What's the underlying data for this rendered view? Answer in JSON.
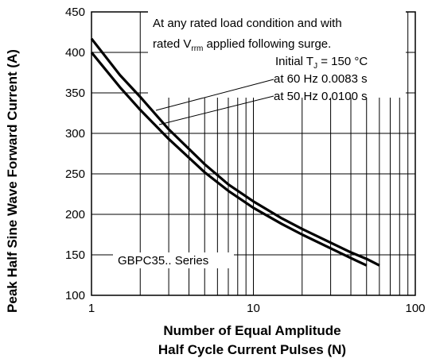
{
  "chart_data": {
    "type": "line",
    "xscale": "log",
    "xlim": [
      1,
      100
    ],
    "ylim": [
      100,
      450
    ],
    "grid": true,
    "xticks": [
      1,
      10,
      100
    ],
    "yticks": [
      100,
      150,
      200,
      250,
      300,
      350,
      400,
      450
    ],
    "xlabel_line1": "Number of Equal Amplitude",
    "xlabel_line2": "Half Cycle Current Pulses (N)",
    "ylabel": "Peak Half Sine Wave Forward Current (A)",
    "annotations": {
      "line1": "At any rated load condition and with",
      "line2_pre": "rated V",
      "line2_sub": "rrm",
      "line2_post": " applied following surge.",
      "line3_pre": "Initial T",
      "line3_sub": "J",
      "line3_post": " = 150 °C",
      "line4": "at 60 Hz 0.0083 s",
      "line5": "at 50 Hz 0.0100 s",
      "series_label": "GBPC35.. Series"
    },
    "series": [
      {
        "name": "at 60 Hz 0.0083 s",
        "x": [
          1,
          1.5,
          2,
          3,
          5,
          7,
          10,
          15,
          20,
          30,
          40,
          50,
          60
        ],
        "y": [
          417,
          372,
          345,
          305,
          262,
          237,
          216,
          195,
          182,
          165,
          153,
          145,
          137
        ]
      },
      {
        "name": "at 50 Hz 0.0100 s",
        "x": [
          1,
          1.5,
          2,
          3,
          5,
          7,
          10,
          15,
          20,
          30,
          40,
          50
        ],
        "y": [
          400,
          357,
          329,
          293,
          252,
          229,
          208,
          188,
          175,
          158,
          146,
          137
        ]
      }
    ]
  }
}
